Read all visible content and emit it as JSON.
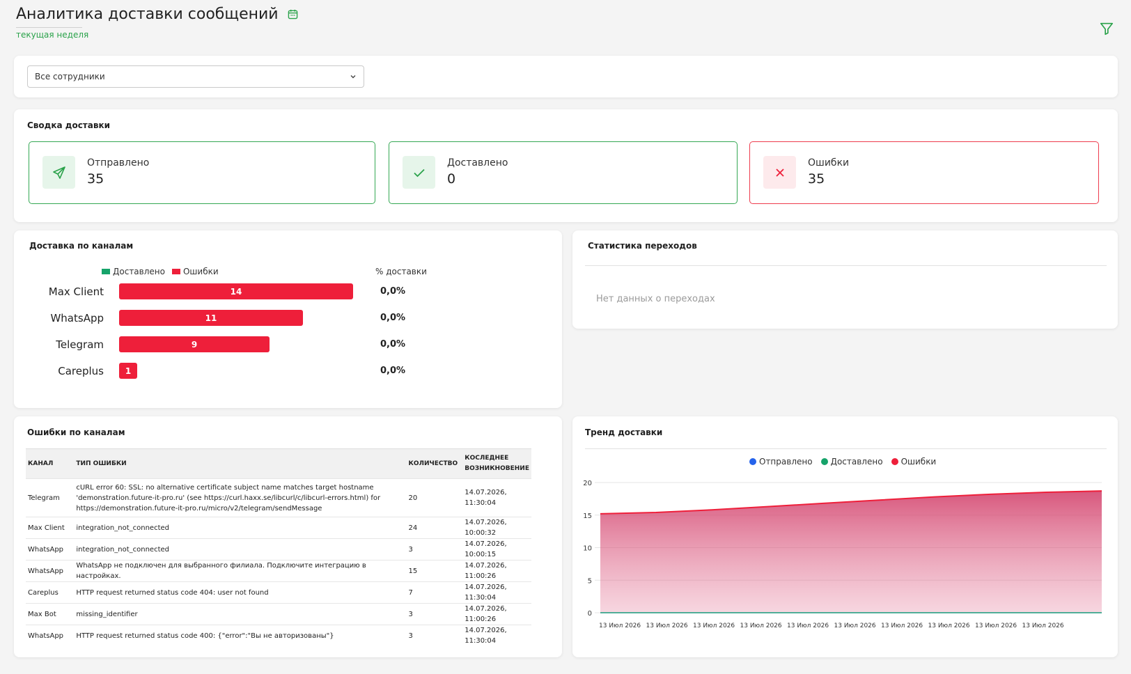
{
  "header": {
    "title": "Аналитика доставки сообщений",
    "subtitle": "текущая неделя"
  },
  "filter": {
    "employee_select_value": "Все сотрудники"
  },
  "summary": {
    "title": "Сводка доставки",
    "stats": [
      {
        "label": "Отправлено",
        "value": "35",
        "icon": "send-icon"
      },
      {
        "label": "Доставлено",
        "value": "0",
        "icon": "check-icon"
      },
      {
        "label": "Ошибки",
        "value": "35",
        "icon": "close-icon"
      }
    ]
  },
  "channels": {
    "title": "Доставка по каналам",
    "legend_delivered": "Доставлено",
    "legend_errors": "Ошибки",
    "pct_header": "% доставки"
  },
  "clicks": {
    "title": "Статистика переходов",
    "empty": "Нет данных о переходах"
  },
  "errors_table": {
    "title": "Ошибки по каналам",
    "columns": [
      "КАНАЛ",
      "ТИП ОШИБКИ",
      "КОЛИЧЕСТВО",
      "КОСЛЕДНЕЕ ВОЗНИКНОВЕНИЕ"
    ],
    "rows": [
      {
        "channel": "Telegram",
        "error": "cURL error 60: SSL: no alternative certificate subject name matches target hostname 'demonstration.future-it-pro.ru' (see https://curl.haxx.se/libcurl/c/libcurl-errors.html) for https://demonstration.future-it-pro.ru/micro/v2/telegram/sendMessage",
        "count": "20",
        "last": "14.07.2026, 11:30:04"
      },
      {
        "channel": "Max Client",
        "error": "integration_not_connected",
        "count": "24",
        "last": "14.07.2026, 10:00:32"
      },
      {
        "channel": "WhatsApp",
        "error": "integration_not_connected",
        "count": "3",
        "last": "14.07.2026, 10:00:15"
      },
      {
        "channel": "WhatsApp",
        "error": "WhatsApp не подключен для выбранного филиала. Подключите интеграцию в настройках.",
        "count": "15",
        "last": "14.07.2026, 11:00:26"
      },
      {
        "channel": "Careplus",
        "error": "HTTP request returned status code 404: user not found",
        "count": "7",
        "last": "14.07.2026, 11:30:04"
      },
      {
        "channel": "Max Bot",
        "error": "missing_identifier",
        "count": "3",
        "last": "14.07.2026, 11:00:26"
      },
      {
        "channel": "WhatsApp",
        "error": "HTTP request returned status code 400: {\"error\":\"Вы не авторизованы\"}",
        "count": "3",
        "last": "14.07.2026, 11:30:04"
      }
    ]
  },
  "trend": {
    "title": "Тренд доставки"
  },
  "colors": {
    "accent_green": "#2aa24a",
    "error_red": "#ee1f3a",
    "sent_blue": "#2563eb",
    "delivered_teal": "#16a36a"
  },
  "chart_data": [
    {
      "type": "bar",
      "orientation": "horizontal",
      "title": "Доставка по каналам",
      "categories": [
        "Max Client",
        "WhatsApp",
        "Telegram",
        "Careplus"
      ],
      "series": [
        {
          "name": "Доставлено",
          "values": [
            0,
            0,
            0,
            0
          ]
        },
        {
          "name": "Ошибки",
          "values": [
            14,
            11,
            9,
            1
          ]
        }
      ],
      "percent_delivered": [
        "0,0%",
        "0,0%",
        "0,0%",
        "0,0%"
      ],
      "legend": "top"
    },
    {
      "type": "area",
      "title": "Тренд доставки",
      "x": [
        "13 Июл 2026",
        "13 Июл 2026",
        "13 Июл 2026",
        "13 Июл 2026",
        "13 Июл 2026",
        "13 Июл 2026",
        "13 Июл 2026",
        "13 Июл 2026",
        "13 Июл 2026",
        "13 Июл 2026"
      ],
      "series": [
        {
          "name": "Отправлено",
          "values": [
            0,
            0,
            0,
            0,
            0,
            0,
            0,
            0,
            0,
            0
          ]
        },
        {
          "name": "Доставлено",
          "values": [
            0,
            0,
            0,
            0,
            0,
            0,
            0,
            0,
            0,
            0
          ]
        },
        {
          "name": "Ошибки",
          "values": [
            15.2,
            15.4,
            15.8,
            16.3,
            16.8,
            17.3,
            17.8,
            18.2,
            18.5,
            18.7
          ]
        }
      ],
      "yticks": [
        0,
        5,
        10,
        15,
        20
      ],
      "ylim": [
        0,
        20
      ],
      "grid": true,
      "legend": "top"
    }
  ]
}
